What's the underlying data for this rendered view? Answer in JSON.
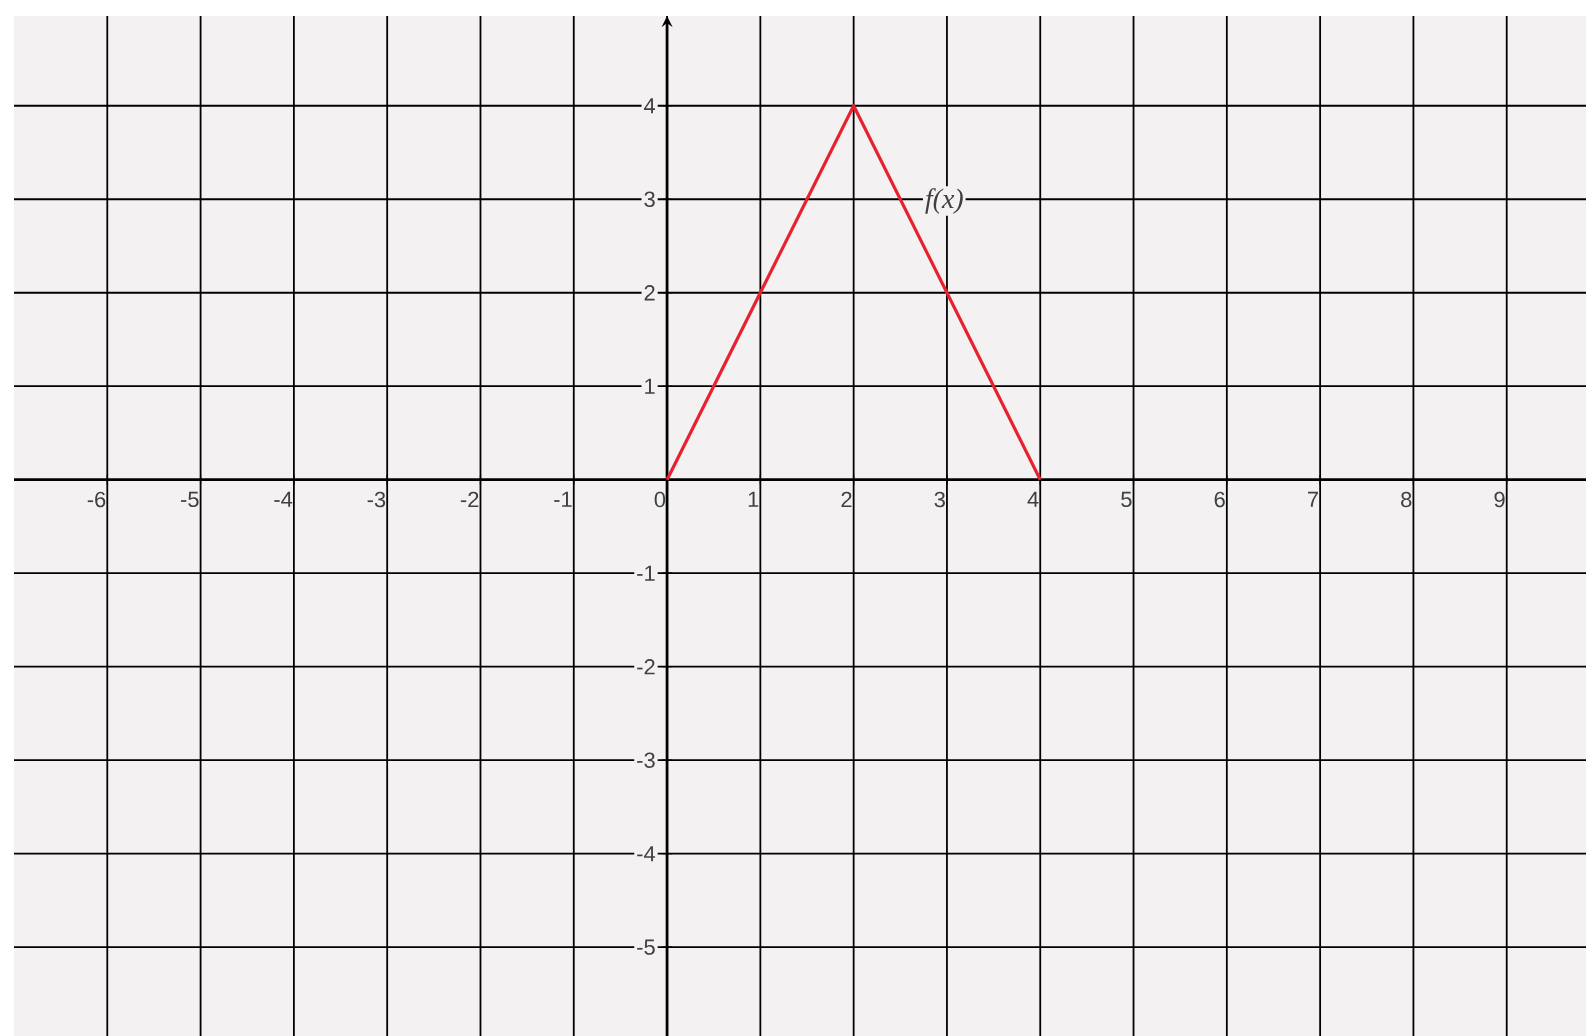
{
  "chart_data": {
    "type": "line",
    "series": [
      {
        "name": "f(x)",
        "color": "#e8212e",
        "x": [
          0,
          2,
          4
        ],
        "values": [
          0,
          4,
          0
        ]
      }
    ],
    "xlim": [
      -7,
      9.85
    ],
    "ylim": [
      -5.95,
      4.96
    ],
    "xticks": [
      -6,
      -5,
      -4,
      -3,
      -2,
      -1,
      0,
      1,
      2,
      3,
      4,
      5,
      6,
      7,
      8,
      9
    ],
    "yticks": [
      -5,
      -4,
      -3,
      -2,
      -1,
      1,
      2,
      3,
      4
    ],
    "grid": true,
    "marker": "none",
    "line_style": "solid"
  }
}
